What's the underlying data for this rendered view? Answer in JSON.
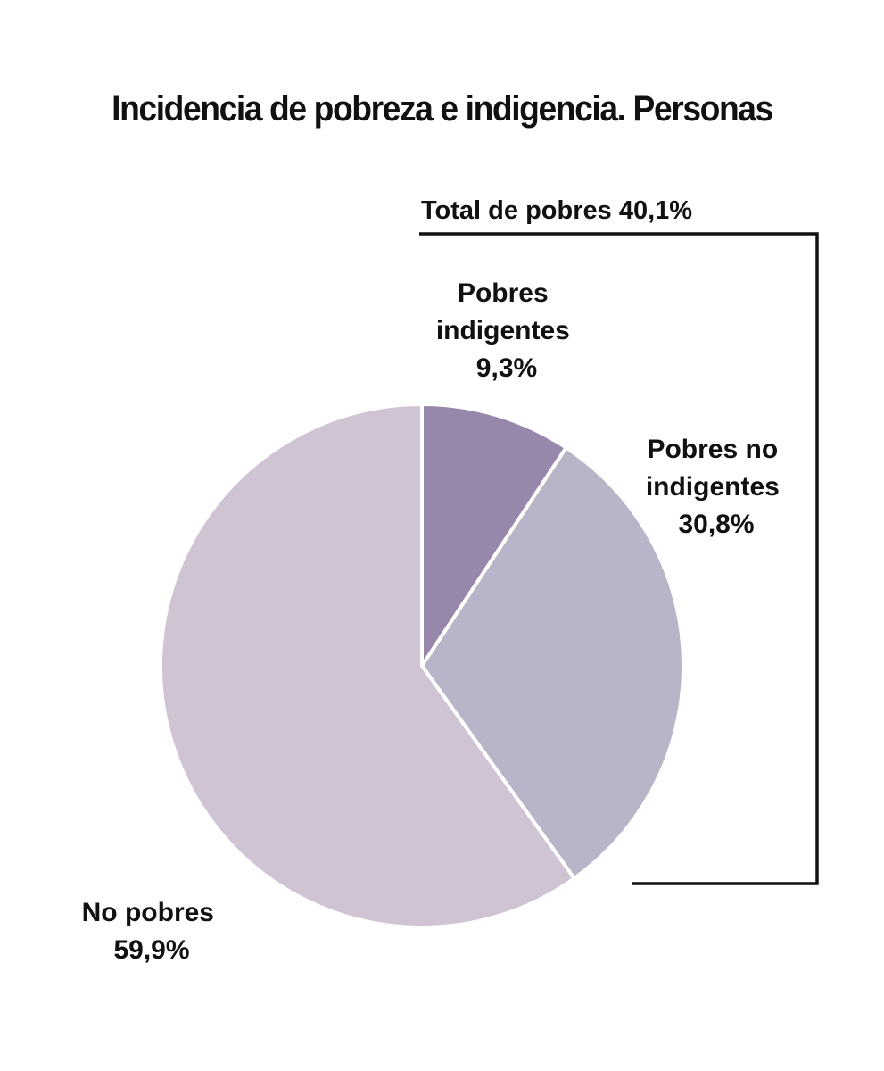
{
  "chart_data": {
    "type": "pie",
    "title": "Incidencia de pobreza e indigencia. Personas",
    "slices": [
      {
        "line1": "Pobres",
        "line2": "indigentes",
        "value_label": "9,3%",
        "value": 9.3,
        "color": "#9787ab"
      },
      {
        "line1": "Pobres no",
        "line2": "indigentes",
        "value_label": "30,8%",
        "value": 30.8,
        "color": "#b9b5c8"
      },
      {
        "line1": "No pobres",
        "line2": "",
        "value_label": "59,9%",
        "value": 59.9,
        "color": "#d0c4d4"
      }
    ],
    "bracket": {
      "label": "Total de pobres 40,1%"
    },
    "legend": "none"
  }
}
